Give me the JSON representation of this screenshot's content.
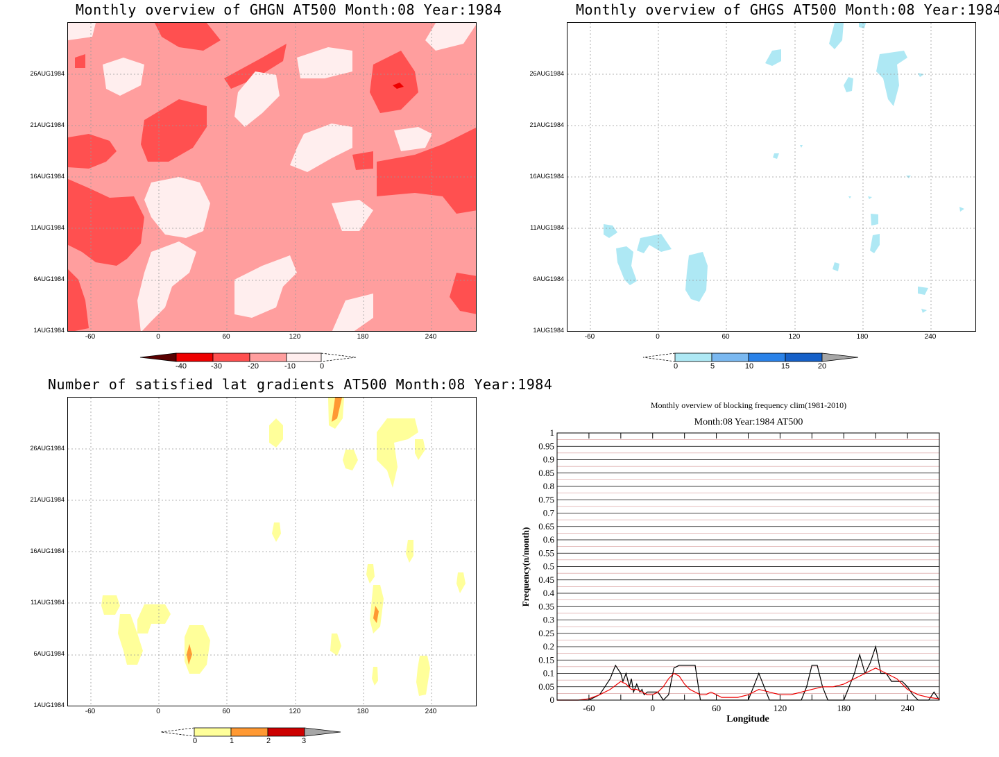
{
  "panels": {
    "ghgn": {
      "title": "Monthly overview of GHGN AT500 Month:08 Year:1984",
      "yticks": [
        "26AUG1984",
        "21AUG1984",
        "16AUG1984",
        "11AUG1984",
        "6AUG1984",
        "1AUG1984"
      ],
      "xticks": [
        "-60",
        "0",
        "60",
        "120",
        "180",
        "240"
      ],
      "colorbar": [
        "-40",
        "-30",
        "-20",
        "-10",
        "0"
      ],
      "colors": {
        "background": "#ff9e9e",
        "dark": "#ff5050",
        "light": "#ffeeee",
        "darkest": "#ee0000"
      }
    },
    "ghgs": {
      "title": "Monthly overview of GHGS AT500 Month:08 Year:1984",
      "yticks": [
        "26AUG1984",
        "21AUG1984",
        "16AUG1984",
        "11AUG1984",
        "6AUG1984",
        "1AUG1984"
      ],
      "xticks": [
        "-60",
        "0",
        "60",
        "120",
        "180",
        "240"
      ],
      "colorbar": [
        "0",
        "5",
        "10",
        "15",
        "20"
      ],
      "colors": {
        "fill": "#aee8f4"
      }
    },
    "gradients": {
      "title": "Number of satisfied lat gradients AT500 Month:08 Year:1984",
      "yticks": [
        "26AUG1984",
        "21AUG1984",
        "16AUG1984",
        "11AUG1984",
        "6AUG1984",
        "1AUG1984"
      ],
      "xticks": [
        "-60",
        "0",
        "60",
        "120",
        "180",
        "240"
      ],
      "colorbar": [
        "0",
        "1",
        "2",
        "3"
      ],
      "colors": {
        "one": "#ffff9a",
        "two": "#ff9933"
      }
    }
  },
  "chart_data": {
    "type": "line",
    "title": "Monthly overview of blocking frequency clim(1981-2010)",
    "subtitle": "Month:08 Year:1984  AT500",
    "xlabel": "Longitude",
    "ylabel": "Frequency(n/month)",
    "xlim": [
      -90,
      270
    ],
    "ylim": [
      0,
      1
    ],
    "xticks": [
      "-60",
      "0",
      "60",
      "120",
      "180",
      "240"
    ],
    "yticks": [
      "0",
      "0.05",
      "0.1",
      "0.15",
      "0.2",
      "0.25",
      "0.3",
      "0.35",
      "0.4",
      "0.45",
      "0.5",
      "0.55",
      "0.6",
      "0.65",
      "0.7",
      "0.75",
      "0.8",
      "0.85",
      "0.9",
      "0.95",
      "1"
    ],
    "grid": true,
    "series": [
      {
        "color": "#000000",
        "x": [
          -90,
          -70,
          -60,
          -50,
          -45,
          -40,
          -35,
          -30,
          -28,
          -25,
          -22,
          -20,
          -18,
          -15,
          -12,
          -10,
          -8,
          -5,
          0,
          5,
          10,
          15,
          20,
          25,
          30,
          35,
          40,
          45,
          50,
          55,
          60,
          65,
          70,
          80,
          90,
          95,
          100,
          105,
          110,
          115,
          120,
          130,
          140,
          145,
          150,
          155,
          160,
          165,
          170,
          180,
          190,
          195,
          200,
          205,
          210,
          215,
          220,
          225,
          230,
          235,
          240,
          245,
          250,
          260,
          265,
          270
        ],
        "y": [
          0,
          0,
          0,
          0.02,
          0.05,
          0.08,
          0.13,
          0.1,
          0.07,
          0.1,
          0.05,
          0.08,
          0.03,
          0.06,
          0.03,
          0.04,
          0.02,
          0.03,
          0.03,
          0.03,
          0,
          0.02,
          0.12,
          0.13,
          0.13,
          0.13,
          0.13,
          0,
          0,
          0,
          0,
          0,
          0,
          0,
          0,
          0.05,
          0.1,
          0.05,
          0,
          0,
          0,
          0,
          0,
          0.05,
          0.13,
          0.13,
          0.05,
          0,
          0,
          0,
          0.1,
          0.17,
          0.1,
          0.14,
          0.2,
          0.1,
          0.1,
          0.07,
          0.07,
          0.07,
          0.05,
          0.02,
          0,
          0,
          0.03,
          0
        ]
      },
      {
        "color": "#ee0000",
        "x": [
          -90,
          -70,
          -60,
          -50,
          -40,
          -30,
          -25,
          -20,
          -15,
          -10,
          -5,
          0,
          5,
          10,
          15,
          20,
          25,
          30,
          35,
          40,
          45,
          50,
          55,
          60,
          65,
          70,
          80,
          90,
          100,
          110,
          120,
          130,
          140,
          150,
          160,
          170,
          180,
          185,
          190,
          195,
          200,
          205,
          210,
          215,
          220,
          225,
          230,
          235,
          240,
          245,
          250,
          260,
          270
        ],
        "y": [
          0,
          0,
          0.005,
          0.02,
          0.04,
          0.07,
          0.06,
          0.04,
          0.04,
          0.03,
          0.02,
          0.02,
          0.03,
          0.05,
          0.08,
          0.1,
          0.09,
          0.06,
          0.04,
          0.03,
          0.02,
          0.02,
          0.03,
          0.02,
          0.01,
          0.01,
          0.01,
          0.02,
          0.04,
          0.03,
          0.02,
          0.02,
          0.03,
          0.04,
          0.05,
          0.05,
          0.06,
          0.07,
          0.08,
          0.09,
          0.1,
          0.11,
          0.12,
          0.11,
          0.1,
          0.09,
          0.08,
          0.06,
          0.04,
          0.03,
          0.02,
          0.01,
          0.005
        ]
      }
    ]
  }
}
